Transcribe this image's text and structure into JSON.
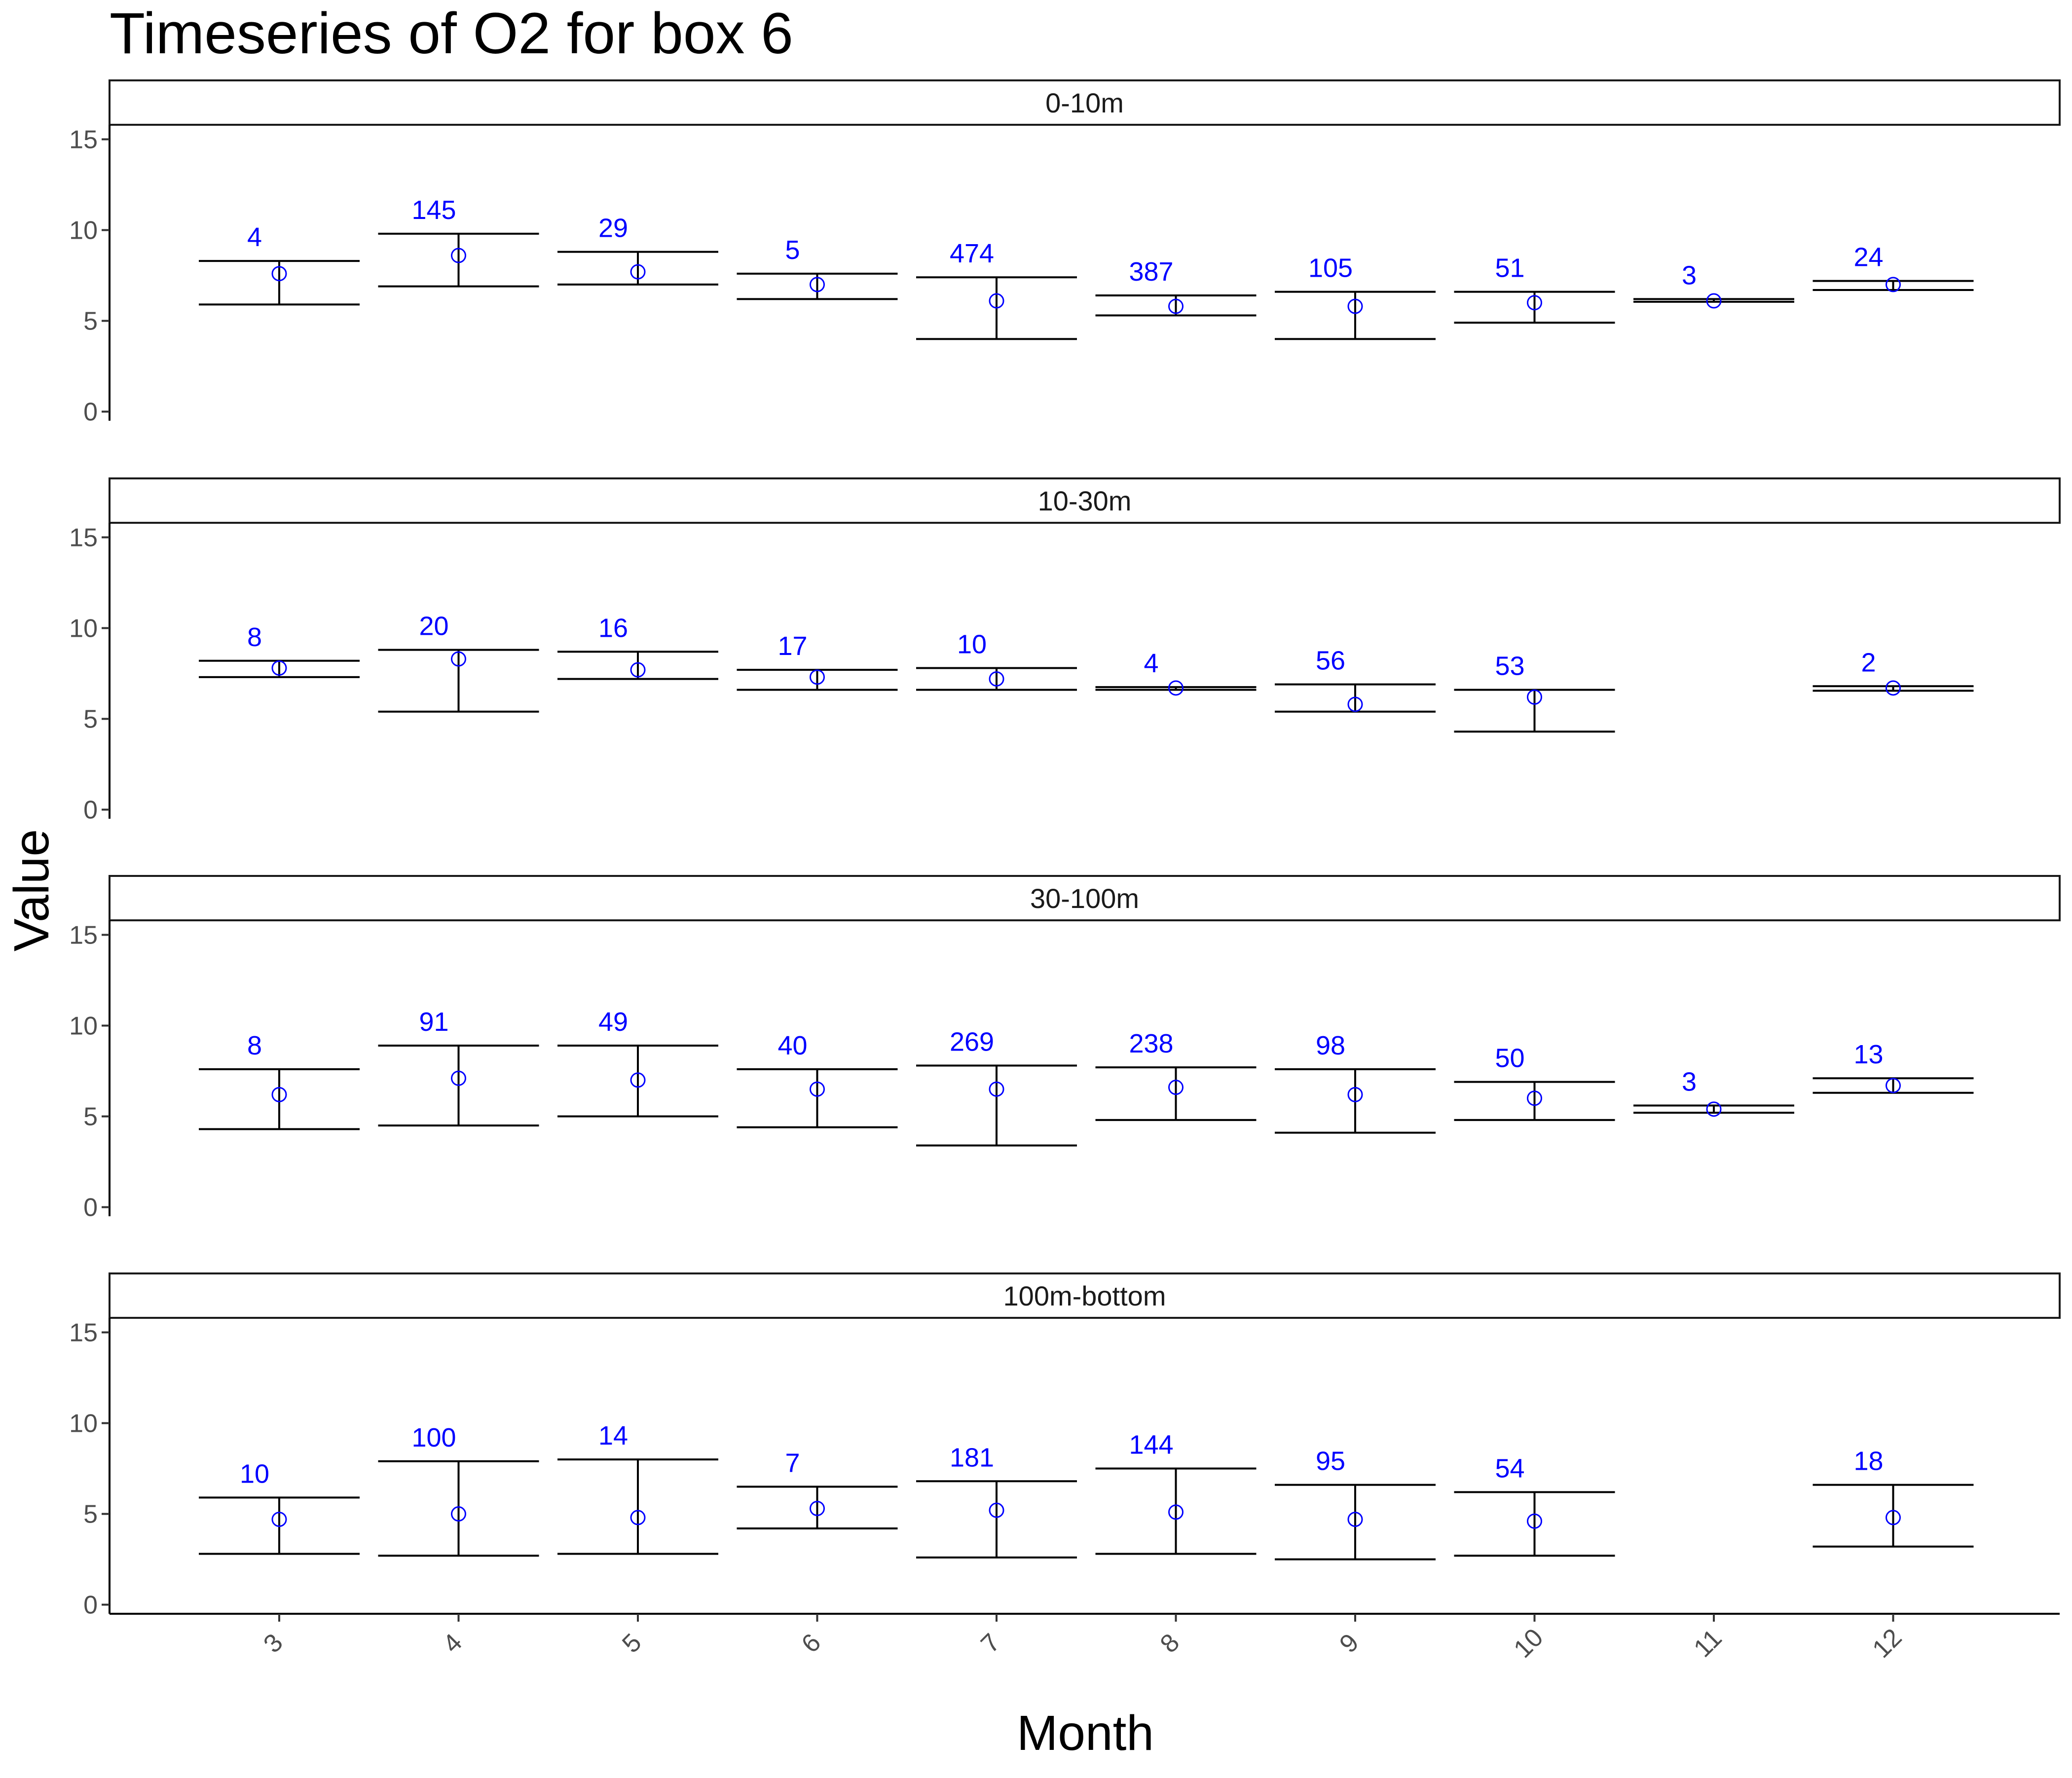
{
  "chart_data": {
    "type": "errorbar",
    "title": "Timeseries of  O2  for box  6",
    "xlabel": "Month",
    "ylabel": "Value",
    "x_categories": [
      "3",
      "4",
      "5",
      "6",
      "7",
      "8",
      "9",
      "10",
      "11",
      "12"
    ],
    "ylim": [
      -0.5,
      15.8
    ],
    "y_ticks": [
      0,
      5,
      10,
      15
    ],
    "grid": false,
    "colors": {
      "point": "#0000ff",
      "count_label": "#0000ff",
      "errorbar": "#000000"
    },
    "panels": [
      {
        "label": "0-10m",
        "points": [
          {
            "month": "3",
            "mean": 7.6,
            "low": 5.9,
            "high": 8.3,
            "n": "4"
          },
          {
            "month": "4",
            "mean": 8.6,
            "low": 6.9,
            "high": 9.8,
            "n": "145"
          },
          {
            "month": "5",
            "mean": 7.7,
            "low": 7.0,
            "high": 8.8,
            "n": "29"
          },
          {
            "month": "6",
            "mean": 7.0,
            "low": 6.2,
            "high": 7.6,
            "n": "5"
          },
          {
            "month": "7",
            "mean": 6.1,
            "low": 4.0,
            "high": 7.4,
            "n": "474"
          },
          {
            "month": "8",
            "mean": 5.8,
            "low": 5.3,
            "high": 6.4,
            "n": "387"
          },
          {
            "month": "9",
            "mean": 5.8,
            "low": 4.0,
            "high": 6.6,
            "n": "105"
          },
          {
            "month": "10",
            "mean": 6.0,
            "low": 4.9,
            "high": 6.6,
            "n": "51"
          },
          {
            "month": "11",
            "mean": 6.1,
            "low": 6.05,
            "high": 6.2,
            "n": "3"
          },
          {
            "month": "12",
            "mean": 7.0,
            "low": 6.7,
            "high": 7.2,
            "n": "24"
          }
        ]
      },
      {
        "label": "10-30m",
        "points": [
          {
            "month": "3",
            "mean": 7.8,
            "low": 7.3,
            "high": 8.2,
            "n": "8"
          },
          {
            "month": "4",
            "mean": 8.3,
            "low": 5.4,
            "high": 8.8,
            "n": "20"
          },
          {
            "month": "5",
            "mean": 7.7,
            "low": 7.2,
            "high": 8.7,
            "n": "16"
          },
          {
            "month": "6",
            "mean": 7.3,
            "low": 6.6,
            "high": 7.7,
            "n": "17"
          },
          {
            "month": "7",
            "mean": 7.2,
            "low": 6.6,
            "high": 7.8,
            "n": "10"
          },
          {
            "month": "8",
            "mean": 6.7,
            "low": 6.6,
            "high": 6.75,
            "n": "4"
          },
          {
            "month": "9",
            "mean": 5.8,
            "low": 5.4,
            "high": 6.9,
            "n": "56"
          },
          {
            "month": "10",
            "mean": 6.2,
            "low": 4.3,
            "high": 6.6,
            "n": "53"
          },
          {
            "month": "12",
            "mean": 6.7,
            "low": 6.55,
            "high": 6.8,
            "n": "2"
          }
        ]
      },
      {
        "label": "30-100m",
        "points": [
          {
            "month": "3",
            "mean": 6.2,
            "low": 4.3,
            "high": 7.6,
            "n": "8"
          },
          {
            "month": "4",
            "mean": 7.1,
            "low": 4.5,
            "high": 8.9,
            "n": "91"
          },
          {
            "month": "5",
            "mean": 7.0,
            "low": 5.0,
            "high": 8.9,
            "n": "49"
          },
          {
            "month": "6",
            "mean": 6.5,
            "low": 4.4,
            "high": 7.6,
            "n": "40"
          },
          {
            "month": "7",
            "mean": 6.5,
            "low": 3.4,
            "high": 7.8,
            "n": "269"
          },
          {
            "month": "8",
            "mean": 6.6,
            "low": 4.8,
            "high": 7.7,
            "n": "238"
          },
          {
            "month": "9",
            "mean": 6.2,
            "low": 4.1,
            "high": 7.6,
            "n": "98"
          },
          {
            "month": "10",
            "mean": 6.0,
            "low": 4.8,
            "high": 6.9,
            "n": "50"
          },
          {
            "month": "11",
            "mean": 5.4,
            "low": 5.2,
            "high": 5.6,
            "n": "3"
          },
          {
            "month": "12",
            "mean": 6.7,
            "low": 6.3,
            "high": 7.1,
            "n": "13"
          }
        ]
      },
      {
        "label": "100m-bottom",
        "points": [
          {
            "month": "3",
            "mean": 4.7,
            "low": 2.8,
            "high": 5.9,
            "n": "10"
          },
          {
            "month": "4",
            "mean": 5.0,
            "low": 2.7,
            "high": 7.9,
            "n": "100"
          },
          {
            "month": "5",
            "mean": 4.8,
            "low": 2.8,
            "high": 8.0,
            "n": "14"
          },
          {
            "month": "6",
            "mean": 5.3,
            "low": 4.2,
            "high": 6.5,
            "n": "7"
          },
          {
            "month": "7",
            "mean": 5.2,
            "low": 2.6,
            "high": 6.8,
            "n": "181"
          },
          {
            "month": "8",
            "mean": 5.1,
            "low": 2.8,
            "high": 7.5,
            "n": "144"
          },
          {
            "month": "9",
            "mean": 4.7,
            "low": 2.5,
            "high": 6.6,
            "n": "95"
          },
          {
            "month": "10",
            "mean": 4.6,
            "low": 2.7,
            "high": 6.2,
            "n": "54"
          },
          {
            "month": "12",
            "mean": 4.8,
            "low": 3.2,
            "high": 6.6,
            "n": "18"
          }
        ]
      }
    ]
  }
}
